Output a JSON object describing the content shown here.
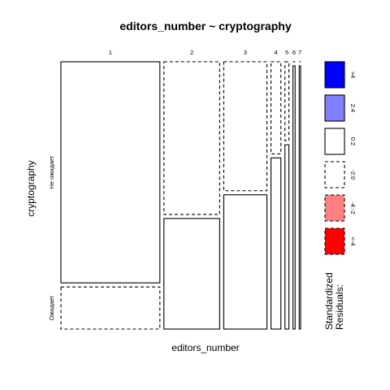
{
  "chart_data": {
    "type": "mosaic",
    "title": "editors_number ~ cryptography",
    "xlabel": "editors_number",
    "ylabel": "cryptography",
    "x_categories": [
      "1",
      "2",
      "3",
      "4",
      "5",
      "6",
      "7"
    ],
    "y_categories": [
      "Не ожидает",
      "Ожидает"
    ],
    "column_proportions": [
      0.55,
      0.31,
      0.24,
      0.055,
      0.022,
      0.012,
      0.008
    ],
    "cells": [
      {
        "x": "1",
        "y": "Не ожидает",
        "proportion": 0.84,
        "residual_band": "0:2"
      },
      {
        "x": "1",
        "y": "Ожидает",
        "proportion": 0.16,
        "residual_band": "-2:0"
      },
      {
        "x": "2",
        "y": "Не ожидает",
        "proportion": 0.58,
        "residual_band": "-2:0"
      },
      {
        "x": "2",
        "y": "Ожидает",
        "proportion": 0.42,
        "residual_band": "0:2"
      },
      {
        "x": "3",
        "y": "Не ожидает",
        "proportion": 0.49,
        "residual_band": "-2:0"
      },
      {
        "x": "3",
        "y": "Ожидает",
        "proportion": 0.51,
        "residual_band": "0:2"
      },
      {
        "x": "4",
        "y": "Не ожидает",
        "proportion": 0.35,
        "residual_band": "-2:0"
      },
      {
        "x": "4",
        "y": "Ожидает",
        "proportion": 0.65,
        "residual_band": "0:2"
      },
      {
        "x": "5",
        "y": "Не ожидает",
        "proportion": 0.3,
        "residual_band": "-2:0"
      },
      {
        "x": "5",
        "y": "Ожидает",
        "proportion": 0.7,
        "residual_band": "0:2"
      },
      {
        "x": "6",
        "y": "Не ожидает",
        "proportion": 0.0,
        "residual_band": "0:2"
      },
      {
        "x": "6",
        "y": "Ожидает",
        "proportion": 1.0,
        "residual_band": "0:2"
      },
      {
        "x": "7",
        "y": "Не ожидает",
        "proportion": 0.0,
        "residual_band": "0:2"
      },
      {
        "x": "7",
        "y": "Ожидает",
        "proportion": 1.0,
        "residual_band": "0:2"
      }
    ],
    "legend": {
      "title_lines": [
        "Standardized",
        "Residuals:"
      ],
      "items": [
        {
          "label": ">4",
          "color": "#0000ff",
          "dashed": false
        },
        {
          "label": "2:4",
          "color": "#8080ff",
          "dashed": false
        },
        {
          "label": "0:2",
          "color": "#ffffff",
          "dashed": false
        },
        {
          "label": "-2:0",
          "color": "#ffffff",
          "dashed": true
        },
        {
          "label": "-4:-2",
          "color": "#ff8080",
          "dashed": true
        },
        {
          "label": "<-4",
          "color": "#ff0000",
          "dashed": true
        }
      ]
    }
  }
}
